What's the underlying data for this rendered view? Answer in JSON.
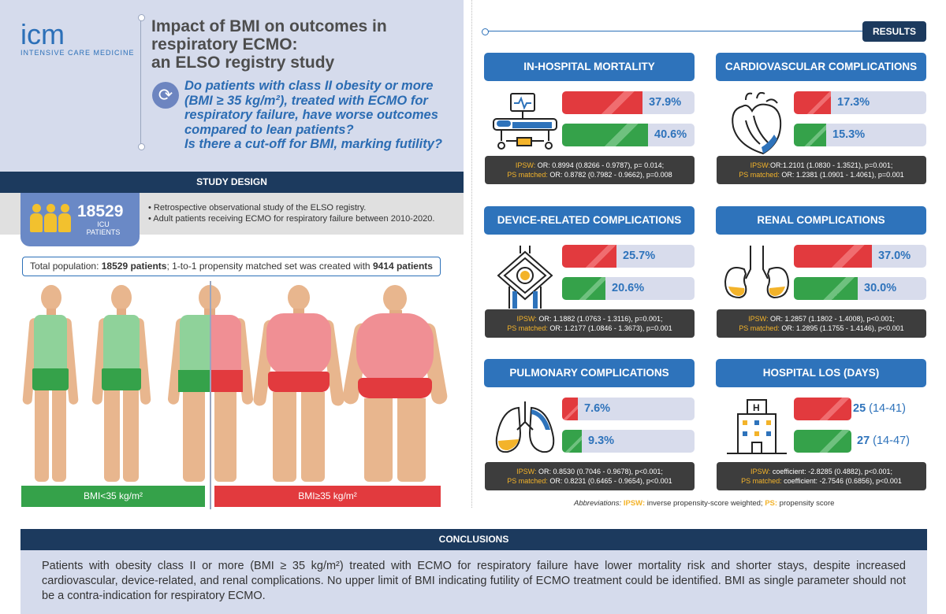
{
  "header": {
    "logo_letters": "icm",
    "logo_text": "INTENSIVE CARE MEDICINE",
    "title_lines": [
      "Impact of BMI on outcomes in",
      "respiratory ECMO:",
      "an ELSO registry study"
    ],
    "question_lines": [
      "Do patients with class II obesity or more",
      "(BMI ≥ 35 kg/m²), treated with ECMO for",
      "respiratory failure, have worse outcomes",
      "compared to lean patients?",
      "Is there a cut-off for BMI, marking futility?"
    ]
  },
  "study_design": {
    "heading": "STUDY DESIGN",
    "icu_count": "18529",
    "icu_label_1": "ICU",
    "icu_label_2": "PATIENTS",
    "bullets": [
      "• Retrospective observational study of the ELSO registry.",
      "• Adult patients receiving ECMO for respiratory failure between 2010-2020."
    ]
  },
  "population": {
    "prefix": "Total population: ",
    "total": "18529 patients",
    "middle": "; 1-to-1 propensity matched set was created with ",
    "matched": "9414 patients"
  },
  "bmi_groups": {
    "low": "BMI<35 kg/m²",
    "high": "BMI≥35 kg/m²"
  },
  "results": {
    "badge": "RESULTS",
    "panels": [
      {
        "title": "IN-HOSPITAL MORTALITY",
        "icon": "hospital-bed-icon",
        "red_value": "37.9%",
        "red_frac": 0.379,
        "green_value": "40.6%",
        "green_frac": 0.406,
        "ipsw_label": "IPSW:",
        "ipsw": " OR: 0.8994 (0.8266 - 0.9787), p= 0.014;",
        "ps_label": "PS matched:",
        "ps": " OR: 0.8782 (0.7982 - 0.9662), p=0.008"
      },
      {
        "title": "CARDIOVASCULAR COMPLICATIONS",
        "icon": "heart-icon",
        "red_value": "17.3%",
        "red_frac": 0.173,
        "green_value": "15.3%",
        "green_frac": 0.153,
        "ipsw_label": "IPSW:",
        "ipsw": "OR:1.2101 (1.0830 - 1.3521), p=0.001;",
        "ps_label": "PS matched:",
        "ps": " OR: 1.2381 (1.0901 - 1.4061), p=0.001"
      },
      {
        "title": "DEVICE-RELATED COMPLICATIONS",
        "icon": "ecmo-device-icon",
        "red_value": "25.7%",
        "red_frac": 0.257,
        "green_value": "20.6%",
        "green_frac": 0.206,
        "ipsw_label": "IPSW:",
        "ipsw": " OR: 1.1882 (1.0763 - 1.3116), p=0.001;",
        "ps_label": "PS matched:",
        "ps": " OR: 1.2177 (1.0846 - 1.3673), p=0.001"
      },
      {
        "title": "RENAL COMPLICATIONS",
        "icon": "kidneys-icon",
        "red_value": "37.0%",
        "red_frac": 0.37,
        "green_value": "30.0%",
        "green_frac": 0.3,
        "ipsw_label": "IPSW:",
        "ipsw": " OR: 1.2857 (1.1802 - 1.4008), p<0.001;",
        "ps_label": "PS matched:",
        "ps": " OR: 1.2895 (1.1755 - 1.4146), p<0.001"
      },
      {
        "title": "PULMONARY COMPLICATIONS",
        "icon": "lungs-icon",
        "red_value": "7.6%",
        "red_frac": 0.076,
        "green_value": "9.3%",
        "green_frac": 0.093,
        "ipsw_label": "IPSW:",
        "ipsw": " OR: 0.8530 (0.7046 - 0.9678), p<0.001;",
        "ps_label": "PS matched:",
        "ps": " OR: 0.8231 (0.6465 - 0.9654), p<0.001"
      },
      {
        "title": "HOSPITAL LOS (DAYS)",
        "icon": "hospital-building-icon",
        "red_value": "25",
        "red_ci": " (14-41)",
        "red_frac": 0.45,
        "green_value": "27",
        "green_ci": " (14-47)",
        "green_frac": 0.45,
        "ipsw_label": "IPSW:",
        "ipsw": " coefficient: -2.8285 (0.4882), p<0.001;",
        "ps_label": "PS matched:",
        "ps": " coefficient: -2.7546 (0.6856), p<0.001"
      }
    ],
    "abbr": {
      "label": "Abbreviations:",
      "ipsw_key": "IPSW:",
      "ipsw_text": " inverse propensity-score weighted; ",
      "ps_key": "PS:",
      "ps_text": " propensity score"
    }
  },
  "conclusions": {
    "heading": "CONCLUSIONS",
    "text": "Patients with obesity class II or more (BMI ≥ 35 kg/m²) treated with ECMO for respiratory failure have lower mortality risk and shorter stays, despite increased cardiovascular, device-related, and renal complications. No upper limit of BMI indicating futility of ECMO treatment could be identified. BMI as single parameter should not be a contra-indication for respiratory ECMO."
  }
}
